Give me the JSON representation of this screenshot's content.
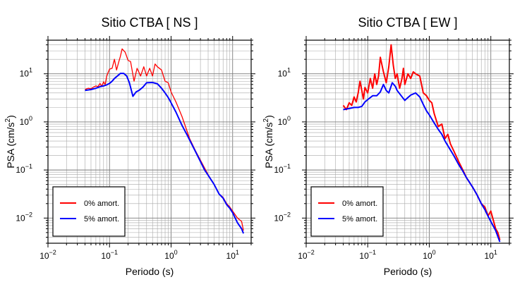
{
  "chart_data": [
    {
      "type": "line",
      "title": "Sitio CTBA [ NS ]",
      "xlabel": "Periodo (s)",
      "ylabel_main": "PSA (cm/s",
      "ylabel_sup": "2",
      "ylabel_tail": ")",
      "xscale": "log",
      "yscale": "log",
      "xlim": [
        0.01,
        20
      ],
      "ylim": [
        0.003,
        50
      ],
      "x_ticks": [
        {
          "base": "10",
          "exp": "−2"
        },
        {
          "base": "10",
          "exp": "−1"
        },
        {
          "base": "10",
          "exp": "0"
        },
        {
          "base": "10",
          "exp": "1"
        }
      ],
      "y_ticks": [
        {
          "base": "10",
          "exp": "−2"
        },
        {
          "base": "10",
          "exp": "−1"
        },
        {
          "base": "10",
          "exp": "0"
        },
        {
          "base": "10",
          "exp": "1"
        }
      ],
      "grid": true,
      "legend_position": "bottom-left",
      "series": [
        {
          "name": "0% amort.",
          "color": "#ff0000",
          "points": [
            [
              0.04,
              4.7
            ],
            [
              0.045,
              5.0
            ],
            [
              0.05,
              4.9
            ],
            [
              0.055,
              5.3
            ],
            [
              0.06,
              5.6
            ],
            [
              0.065,
              5.4
            ],
            [
              0.07,
              6.3
            ],
            [
              0.075,
              5.5
            ],
            [
              0.08,
              6.8
            ],
            [
              0.085,
              6.0
            ],
            [
              0.09,
              9.0
            ],
            [
              0.1,
              12.5
            ],
            [
              0.11,
              13.0
            ],
            [
              0.12,
              20.0
            ],
            [
              0.13,
              12.0
            ],
            [
              0.14,
              17.0
            ],
            [
              0.15,
              23.0
            ],
            [
              0.16,
              33.0
            ],
            [
              0.18,
              28.0
            ],
            [
              0.2,
              19.0
            ],
            [
              0.22,
              18.0
            ],
            [
              0.25,
              7.0
            ],
            [
              0.28,
              13.0
            ],
            [
              0.32,
              9.0
            ],
            [
              0.36,
              14.0
            ],
            [
              0.4,
              9.0
            ],
            [
              0.45,
              13.0
            ],
            [
              0.5,
              9.0
            ],
            [
              0.55,
              16.0
            ],
            [
              0.6,
              14.0
            ],
            [
              0.7,
              12.0
            ],
            [
              0.8,
              7.0
            ],
            [
              0.9,
              6.5
            ],
            [
              1.0,
              4.2
            ],
            [
              1.2,
              2.6
            ],
            [
              1.5,
              1.3
            ],
            [
              2.0,
              0.45
            ],
            [
              2.5,
              0.25
            ],
            [
              3.0,
              0.16
            ],
            [
              3.5,
              0.11
            ],
            [
              4.0,
              0.08
            ],
            [
              5.0,
              0.05
            ],
            [
              6.0,
              0.032
            ],
            [
              7.0,
              0.027
            ],
            [
              8.0,
              0.02
            ],
            [
              9.0,
              0.017
            ],
            [
              10.0,
              0.014
            ],
            [
              12.0,
              0.01
            ],
            [
              14.0,
              0.0085
            ],
            [
              15.0,
              0.0055
            ]
          ]
        },
        {
          "name": "5% amort.",
          "color": "#0000ff",
          "points": [
            [
              0.04,
              4.5
            ],
            [
              0.05,
              4.7
            ],
            [
              0.06,
              5.0
            ],
            [
              0.07,
              5.4
            ],
            [
              0.08,
              5.6
            ],
            [
              0.09,
              5.9
            ],
            [
              0.1,
              6.3
            ],
            [
              0.11,
              7.0
            ],
            [
              0.12,
              8.0
            ],
            [
              0.13,
              8.7
            ],
            [
              0.15,
              10.2
            ],
            [
              0.17,
              10.2
            ],
            [
              0.19,
              9.0
            ],
            [
              0.21,
              6.5
            ],
            [
              0.24,
              3.4
            ],
            [
              0.27,
              4.2
            ],
            [
              0.3,
              4.5
            ],
            [
              0.35,
              5.3
            ],
            [
              0.4,
              6.5
            ],
            [
              0.5,
              6.6
            ],
            [
              0.6,
              6.2
            ],
            [
              0.7,
              5.0
            ],
            [
              0.8,
              4.0
            ],
            [
              0.9,
              3.2
            ],
            [
              1.0,
              2.5
            ],
            [
              1.2,
              1.6
            ],
            [
              1.5,
              0.85
            ],
            [
              1.8,
              0.55
            ],
            [
              2.0,
              0.42
            ],
            [
              2.5,
              0.24
            ],
            [
              3.0,
              0.15
            ],
            [
              3.5,
              0.1
            ],
            [
              4.0,
              0.078
            ],
            [
              5.0,
              0.05
            ],
            [
              6.0,
              0.032
            ],
            [
              7.0,
              0.026
            ],
            [
              8.0,
              0.019
            ],
            [
              9.0,
              0.016
            ],
            [
              10.0,
              0.013
            ],
            [
              12.0,
              0.008
            ],
            [
              14.0,
              0.006
            ],
            [
              15.0,
              0.0048
            ]
          ]
        }
      ]
    },
    {
      "type": "line",
      "title": "Sitio CTBA [ EW ]",
      "xlabel": "Periodo (s)",
      "ylabel_main": "PSA (cm/s",
      "ylabel_sup": "2",
      "ylabel_tail": ")",
      "xscale": "log",
      "yscale": "log",
      "xlim": [
        0.01,
        20
      ],
      "ylim": [
        0.003,
        50
      ],
      "x_ticks": [
        {
          "base": "10",
          "exp": "−2"
        },
        {
          "base": "10",
          "exp": "−1"
        },
        {
          "base": "10",
          "exp": "0"
        },
        {
          "base": "10",
          "exp": "1"
        }
      ],
      "y_ticks": [
        {
          "base": "10",
          "exp": "−2"
        },
        {
          "base": "10",
          "exp": "−1"
        },
        {
          "base": "10",
          "exp": "0"
        },
        {
          "base": "10",
          "exp": "1"
        }
      ],
      "grid": true,
      "legend_position": "bottom-left",
      "series": [
        {
          "name": "0% amort.",
          "color": "#ff0000",
          "points": [
            [
              0.04,
              2.2
            ],
            [
              0.045,
              1.8
            ],
            [
              0.05,
              2.5
            ],
            [
              0.055,
              2.2
            ],
            [
              0.06,
              3.3
            ],
            [
              0.065,
              2.6
            ],
            [
              0.07,
              4.0
            ],
            [
              0.075,
              7.0
            ],
            [
              0.08,
              4.5
            ],
            [
              0.085,
              3.0
            ],
            [
              0.09,
              5.2
            ],
            [
              0.1,
              4.0
            ],
            [
              0.11,
              8.0
            ],
            [
              0.12,
              5.0
            ],
            [
              0.13,
              10.0
            ],
            [
              0.14,
              6.0
            ],
            [
              0.15,
              9.0
            ],
            [
              0.16,
              22.0
            ],
            [
              0.18,
              11.0
            ],
            [
              0.2,
              6.5
            ],
            [
              0.22,
              14.0
            ],
            [
              0.24,
              40.0
            ],
            [
              0.26,
              15.0
            ],
            [
              0.28,
              8.0
            ],
            [
              0.3,
              10.0
            ],
            [
              0.33,
              5.0
            ],
            [
              0.36,
              8.0
            ],
            [
              0.38,
              13.0
            ],
            [
              0.4,
              6.0
            ],
            [
              0.45,
              10.0
            ],
            [
              0.5,
              8.0
            ],
            [
              0.55,
              11.0
            ],
            [
              0.6,
              10.0
            ],
            [
              0.7,
              9.0
            ],
            [
              0.8,
              4.0
            ],
            [
              0.9,
              3.5
            ],
            [
              1.0,
              2.8
            ],
            [
              1.1,
              2.5
            ],
            [
              1.2,
              1.5
            ],
            [
              1.4,
              0.8
            ],
            [
              1.6,
              0.9
            ],
            [
              1.8,
              0.45
            ],
            [
              2.0,
              0.55
            ],
            [
              2.2,
              0.35
            ],
            [
              2.5,
              0.25
            ],
            [
              3.0,
              0.15
            ],
            [
              3.5,
              0.1
            ],
            [
              4.0,
              0.07
            ],
            [
              5.0,
              0.045
            ],
            [
              6.0,
              0.03
            ],
            [
              7.0,
              0.02
            ],
            [
              8.0,
              0.017
            ],
            [
              9.0,
              0.011
            ],
            [
              10.0,
              0.014
            ],
            [
              11.0,
              0.009
            ],
            [
              12.0,
              0.006
            ],
            [
              13.0,
              0.005
            ],
            [
              14.0,
              0.0035
            ]
          ]
        },
        {
          "name": "5% amort.",
          "color": "#0000ff",
          "points": [
            [
              0.04,
              1.8
            ],
            [
              0.05,
              1.9
            ],
            [
              0.06,
              2.0
            ],
            [
              0.07,
              2.0
            ],
            [
              0.08,
              2.1
            ],
            [
              0.09,
              2.6
            ],
            [
              0.1,
              2.9
            ],
            [
              0.12,
              3.5
            ],
            [
              0.14,
              3.5
            ],
            [
              0.16,
              4.2
            ],
            [
              0.18,
              6.0
            ],
            [
              0.2,
              4.5
            ],
            [
              0.22,
              4.0
            ],
            [
              0.25,
              6.5
            ],
            [
              0.28,
              5.5
            ],
            [
              0.3,
              4.5
            ],
            [
              0.35,
              3.5
            ],
            [
              0.4,
              2.8
            ],
            [
              0.45,
              3.2
            ],
            [
              0.5,
              3.6
            ],
            [
              0.6,
              4.0
            ],
            [
              0.7,
              3.3
            ],
            [
              0.8,
              2.3
            ],
            [
              0.9,
              1.7
            ],
            [
              1.0,
              1.4
            ],
            [
              1.2,
              0.95
            ],
            [
              1.4,
              0.7
            ],
            [
              1.6,
              0.55
            ],
            [
              1.8,
              0.4
            ],
            [
              2.0,
              0.32
            ],
            [
              2.5,
              0.2
            ],
            [
              3.0,
              0.13
            ],
            [
              3.5,
              0.095
            ],
            [
              4.0,
              0.07
            ],
            [
              5.0,
              0.045
            ],
            [
              6.0,
              0.03
            ],
            [
              7.0,
              0.02
            ],
            [
              8.0,
              0.015
            ],
            [
              9.0,
              0.011
            ],
            [
              10.0,
              0.0085
            ],
            [
              12.0,
              0.0055
            ],
            [
              14.0,
              0.0032
            ]
          ]
        }
      ]
    }
  ]
}
